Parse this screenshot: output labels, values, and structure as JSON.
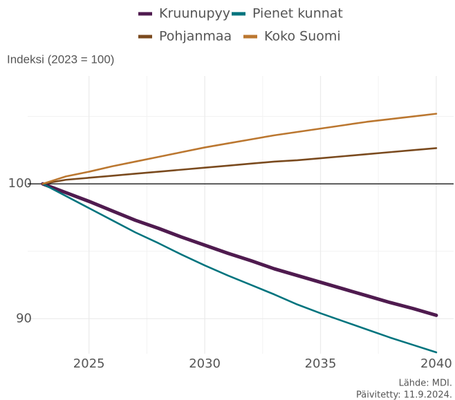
{
  "chart_data": {
    "type": "line",
    "y_label": "Indeksi (2023 = 100)",
    "source": "Lähde: MDI.",
    "updated": "Päivitetty: 11.9.2024.",
    "x": [
      2023,
      2024,
      2025,
      2026,
      2027,
      2028,
      2029,
      2030,
      2031,
      2032,
      2033,
      2034,
      2035,
      2036,
      2037,
      2038,
      2039,
      2040
    ],
    "series": [
      {
        "name": "Kruunupyy",
        "color": "#4f1b4f",
        "values": [
          100,
          99.35,
          98.7,
          98.0,
          97.3,
          96.7,
          96.05,
          95.45,
          94.85,
          94.3,
          93.7,
          93.2,
          92.7,
          92.2,
          91.7,
          91.2,
          90.75,
          90.25
        ]
      },
      {
        "name": "Pienet kunnat",
        "color": "#00747e",
        "values": [
          100,
          99.1,
          98.2,
          97.3,
          96.4,
          95.6,
          94.75,
          93.95,
          93.2,
          92.5,
          91.8,
          91.05,
          90.4,
          89.8,
          89.2,
          88.6,
          88.05,
          87.5
        ]
      },
      {
        "name": "Pohjanmaa",
        "color": "#7a4a1e",
        "values": [
          100,
          100.3,
          100.45,
          100.6,
          100.75,
          100.9,
          101.05,
          101.2,
          101.35,
          101.5,
          101.65,
          101.75,
          101.9,
          102.05,
          102.2,
          102.35,
          102.5,
          102.65
        ]
      },
      {
        "name": "Koko Suomi",
        "color": "#bb7730",
        "values": [
          100,
          100.55,
          100.9,
          101.3,
          101.65,
          102.0,
          102.35,
          102.7,
          103.0,
          103.3,
          103.6,
          103.85,
          104.1,
          104.35,
          104.6,
          104.8,
          105.0,
          105.2
        ]
      }
    ],
    "xlim": [
      2022.35,
      2040.75
    ],
    "ylim": [
      87.4,
      108
    ],
    "xticks": [
      2025,
      2030,
      2035,
      2040
    ],
    "yticks": [
      90,
      100
    ],
    "xticks_minor": [
      2027.5,
      2032.5,
      2037.5
    ],
    "yticks_minor": [
      95,
      105
    ],
    "hline": 100,
    "grid": true,
    "legend": "top"
  }
}
